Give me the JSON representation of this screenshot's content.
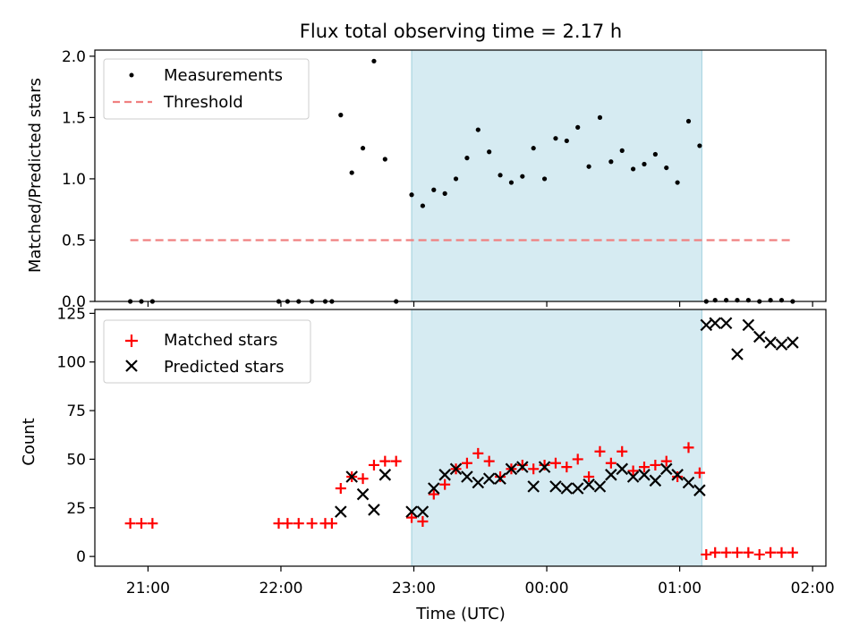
{
  "figure_title": "Flux total observing time = 2.17 h",
  "chart_data": [
    {
      "type": "scatter",
      "ylabel": "Matched/Predicted stars",
      "ylim": [
        0,
        2.05
      ],
      "yticks": [
        "0.0",
        "0.5",
        "1.0",
        "1.5",
        "2.0"
      ],
      "ytick_values": [
        0,
        0.5,
        1.0,
        1.5,
        2.0
      ],
      "legend_position": "upper-left",
      "shaded_interval": [
        "22:59",
        "01:10"
      ],
      "series": [
        {
          "name": "Measurements",
          "marker": "dot",
          "color": "#000000",
          "points": [
            [
              "20:52",
              0
            ],
            [
              "20:57",
              0
            ],
            [
              "21:02",
              0
            ],
            [
              "21:59",
              0
            ],
            [
              "22:03",
              0
            ],
            [
              "22:08",
              0
            ],
            [
              "22:14",
              0
            ],
            [
              "22:20",
              0
            ],
            [
              "22:23",
              0
            ],
            [
              "22:27",
              1.52
            ],
            [
              "22:32",
              1.05
            ],
            [
              "22:37",
              1.25
            ],
            [
              "22:42",
              1.96
            ],
            [
              "22:47",
              1.16
            ],
            [
              "22:52",
              0.0
            ],
            [
              "22:59",
              0.87
            ],
            [
              "23:04",
              0.78
            ],
            [
              "23:09",
              0.91
            ],
            [
              "23:14",
              0.88
            ],
            [
              "23:19",
              1.0
            ],
            [
              "23:24",
              1.17
            ],
            [
              "23:29",
              1.4
            ],
            [
              "23:34",
              1.22
            ],
            [
              "23:39",
              1.03
            ],
            [
              "23:44",
              0.97
            ],
            [
              "23:49",
              1.02
            ],
            [
              "23:54",
              1.25
            ],
            [
              "23:59",
              1.0
            ],
            [
              "00:04",
              1.33
            ],
            [
              "00:09",
              1.31
            ],
            [
              "00:14",
              1.42
            ],
            [
              "00:19",
              1.1
            ],
            [
              "00:24",
              1.5
            ],
            [
              "00:29",
              1.14
            ],
            [
              "00:34",
              1.23
            ],
            [
              "00:39",
              1.08
            ],
            [
              "00:44",
              1.12
            ],
            [
              "00:49",
              1.2
            ],
            [
              "00:54",
              1.09
            ],
            [
              "00:59",
              0.97
            ],
            [
              "01:04",
              1.47
            ],
            [
              "01:09",
              1.27
            ],
            [
              "01:12",
              0.0
            ],
            [
              "01:16",
              0.01
            ],
            [
              "01:21",
              0.01
            ],
            [
              "01:26",
              0.01
            ],
            [
              "01:31",
              0.01
            ],
            [
              "01:36",
              0.0
            ],
            [
              "01:41",
              0.01
            ],
            [
              "01:46",
              0.01
            ],
            [
              "01:51",
              0.0
            ]
          ]
        },
        {
          "name": "Threshold",
          "marker": "dashed-line",
          "color": "#f08080",
          "points": [
            [
              "20:52",
              0.5
            ],
            [
              "01:51",
              0.5
            ]
          ]
        }
      ]
    },
    {
      "type": "scatter",
      "xlabel": "Time (UTC)",
      "ylabel": "Count",
      "ylim": [
        -5,
        127
      ],
      "yticks": [
        "0",
        "25",
        "50",
        "75",
        "100",
        "125"
      ],
      "ytick_values": [
        0,
        25,
        50,
        75,
        100,
        125
      ],
      "xlim": [
        "20:36",
        "02:06"
      ],
      "xticks": [
        "21:00",
        "22:00",
        "23:00",
        "00:00",
        "01:00",
        "02:00"
      ],
      "legend_position": "upper-left",
      "shaded_interval": [
        "22:59",
        "01:10"
      ],
      "series": [
        {
          "name": "Matched stars",
          "marker": "plus",
          "color": "#ff0000",
          "points": [
            [
              "20:52",
              17
            ],
            [
              "20:57",
              17
            ],
            [
              "21:02",
              17
            ],
            [
              "21:59",
              17
            ],
            [
              "22:03",
              17
            ],
            [
              "22:08",
              17
            ],
            [
              "22:14",
              17
            ],
            [
              "22:20",
              17
            ],
            [
              "22:23",
              17
            ],
            [
              "22:27",
              35
            ],
            [
              "22:32",
              41
            ],
            [
              "22:37",
              40
            ],
            [
              "22:42",
              47
            ],
            [
              "22:47",
              49
            ],
            [
              "22:52",
              49
            ],
            [
              "22:59",
              20
            ],
            [
              "23:04",
              18
            ],
            [
              "23:09",
              32
            ],
            [
              "23:14",
              37
            ],
            [
              "23:19",
              45
            ],
            [
              "23:24",
              48
            ],
            [
              "23:29",
              53
            ],
            [
              "23:34",
              49
            ],
            [
              "23:39",
              41
            ],
            [
              "23:44",
              45
            ],
            [
              "23:49",
              47
            ],
            [
              "23:54",
              45
            ],
            [
              "23:59",
              47
            ],
            [
              "00:04",
              48
            ],
            [
              "00:09",
              46
            ],
            [
              "00:14",
              50
            ],
            [
              "00:19",
              41
            ],
            [
              "00:24",
              54
            ],
            [
              "00:29",
              48
            ],
            [
              "00:34",
              54
            ],
            [
              "00:39",
              44
            ],
            [
              "00:44",
              46
            ],
            [
              "00:49",
              47
            ],
            [
              "00:54",
              49
            ],
            [
              "00:59",
              41
            ],
            [
              "01:04",
              56
            ],
            [
              "01:09",
              43
            ],
            [
              "01:12",
              1
            ],
            [
              "01:16",
              2
            ],
            [
              "01:21",
              2
            ],
            [
              "01:26",
              2
            ],
            [
              "01:31",
              2
            ],
            [
              "01:36",
              1
            ],
            [
              "01:41",
              2
            ],
            [
              "01:46",
              2
            ],
            [
              "01:51",
              2
            ]
          ]
        },
        {
          "name": "Predicted stars",
          "marker": "x",
          "color": "#000000",
          "points": [
            [
              "22:27",
              23
            ],
            [
              "22:32",
              41
            ],
            [
              "22:37",
              32
            ],
            [
              "22:42",
              24
            ],
            [
              "22:47",
              42
            ],
            [
              "22:59",
              23
            ],
            [
              "23:04",
              23
            ],
            [
              "23:09",
              35
            ],
            [
              "23:14",
              42
            ],
            [
              "23:19",
              45
            ],
            [
              "23:24",
              41
            ],
            [
              "23:29",
              38
            ],
            [
              "23:34",
              40
            ],
            [
              "23:39",
              40
            ],
            [
              "23:44",
              45
            ],
            [
              "23:49",
              46
            ],
            [
              "23:54",
              36
            ],
            [
              "23:59",
              46
            ],
            [
              "00:04",
              36
            ],
            [
              "00:09",
              35
            ],
            [
              "00:14",
              35
            ],
            [
              "00:19",
              37
            ],
            [
              "00:24",
              36
            ],
            [
              "00:29",
              42
            ],
            [
              "00:34",
              45
            ],
            [
              "00:39",
              41
            ],
            [
              "00:44",
              42
            ],
            [
              "00:49",
              39
            ],
            [
              "00:54",
              45
            ],
            [
              "00:59",
              42
            ],
            [
              "01:04",
              38
            ],
            [
              "01:09",
              34
            ],
            [
              "01:12",
              119
            ],
            [
              "01:16",
              120
            ],
            [
              "01:21",
              120
            ],
            [
              "01:26",
              104
            ],
            [
              "01:31",
              119
            ],
            [
              "01:36",
              113
            ],
            [
              "01:41",
              110
            ],
            [
              "01:46",
              109
            ],
            [
              "01:51",
              110
            ]
          ]
        }
      ]
    }
  ]
}
